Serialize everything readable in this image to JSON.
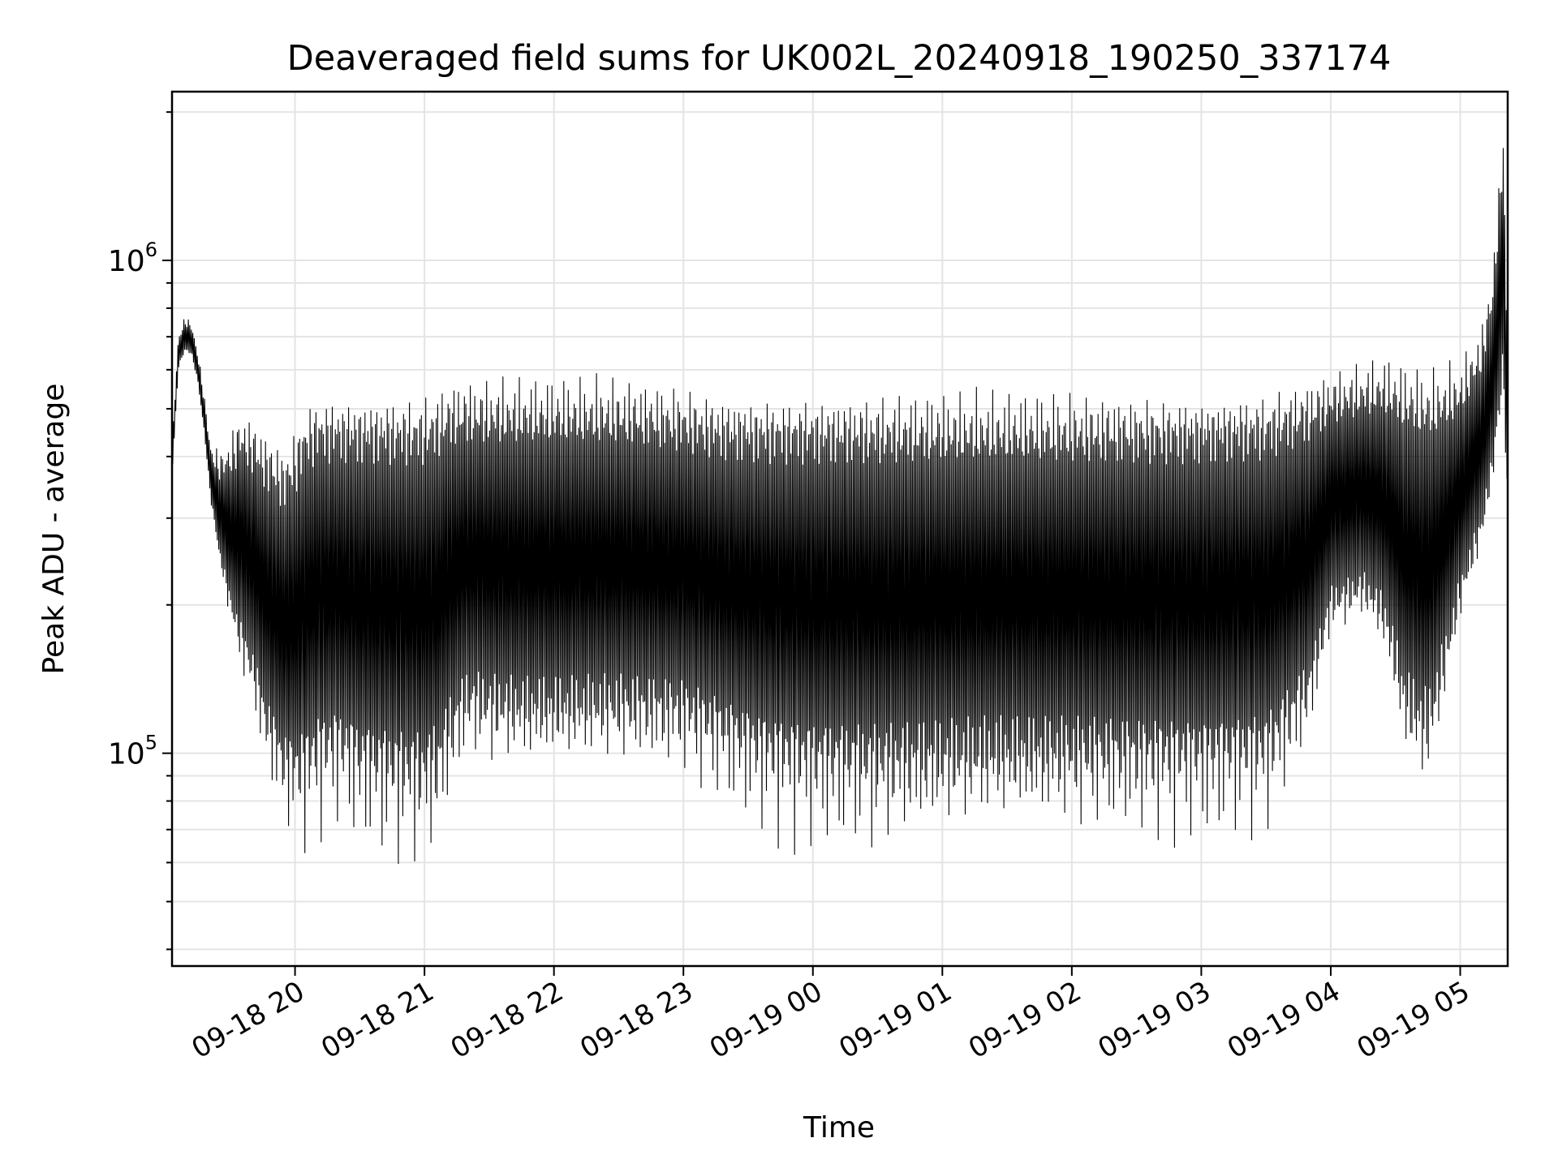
{
  "chart_data": {
    "type": "line",
    "title": "Deaveraged field sums for UK002L_20240918_190250_337174",
    "xlabel": "Time",
    "ylabel": "Peak ADU - average",
    "x_scale": "time",
    "y_scale": "log",
    "xlim": [
      "2024-09-18 19:03",
      "2024-09-19 05:22"
    ],
    "ylim": [
      37000,
      2200000
    ],
    "grid": true,
    "line_color": "#000000",
    "x_ticks": [
      {
        "value": "2024-09-18 20:00",
        "label": "09-18 20"
      },
      {
        "value": "2024-09-18 21:00",
        "label": "09-18 21"
      },
      {
        "value": "2024-09-18 22:00",
        "label": "09-18 22"
      },
      {
        "value": "2024-09-18 23:00",
        "label": "09-18 23"
      },
      {
        "value": "2024-09-19 00:00",
        "label": "09-19 00"
      },
      {
        "value": "2024-09-19 01:00",
        "label": "09-19 01"
      },
      {
        "value": "2024-09-19 02:00",
        "label": "09-19 02"
      },
      {
        "value": "2024-09-19 03:00",
        "label": "09-19 03"
      },
      {
        "value": "2024-09-19 04:00",
        "label": "09-19 04"
      },
      {
        "value": "2024-09-19 05:00",
        "label": "09-19 05"
      }
    ],
    "y_ticks": [
      {
        "value": 100000,
        "base": "10",
        "exp": "5"
      },
      {
        "value": 1000000,
        "base": "10",
        "exp": "6"
      }
    ],
    "series": [
      {
        "x": [
          "2024-09-18 19:03",
          "2024-09-18 19:06",
          "2024-09-18 19:09",
          "2024-09-18 19:12",
          "2024-09-18 19:15",
          "2024-09-18 19:18",
          "2024-09-18 19:21",
          "2024-09-18 19:25",
          "2024-09-18 19:30",
          "2024-09-18 19:35",
          "2024-09-18 19:40",
          "2024-09-18 19:45",
          "2024-09-18 19:50",
          "2024-09-18 19:55",
          "2024-09-18 20:00",
          "2024-09-18 20:05",
          "2024-09-18 20:10",
          "2024-09-18 20:20",
          "2024-09-18 20:30",
          "2024-09-18 20:40",
          "2024-09-18 20:50",
          "2024-09-18 21:00",
          "2024-09-18 21:07",
          "2024-09-18 21:12",
          "2024-09-18 21:20",
          "2024-09-18 21:30",
          "2024-09-18 21:45",
          "2024-09-18 22:00",
          "2024-09-18 22:30",
          "2024-09-18 23:00",
          "2024-09-18 23:20",
          "2024-09-18 23:40",
          "2024-09-19 00:00",
          "2024-09-19 00:30",
          "2024-09-19 01:00",
          "2024-09-19 01:30",
          "2024-09-19 02:00",
          "2024-09-19 02:30",
          "2024-09-19 03:00",
          "2024-09-19 03:30",
          "2024-09-19 03:50",
          "2024-09-19 04:00",
          "2024-09-19 04:15",
          "2024-09-19 04:25",
          "2024-09-19 04:35",
          "2024-09-19 04:45",
          "2024-09-19 05:00",
          "2024-09-19 05:10",
          "2024-09-19 05:15",
          "2024-09-19 05:20",
          "2024-09-19 05:22"
        ],
        "y_low": [
          360000,
          600000,
          650000,
          640000,
          560000,
          440000,
          320000,
          240000,
          180000,
          140000,
          120000,
          92000,
          76000,
          66000,
          60000,
          57000,
          62000,
          66000,
          58000,
          55000,
          53000,
          52000,
          56000,
          70000,
          88000,
          84000,
          82000,
          82000,
          84000,
          83000,
          72000,
          62000,
          58000,
          56000,
          58000,
          60000,
          60000,
          60000,
          60000,
          62000,
          96000,
          165000,
          180000,
          150000,
          82000,
          70000,
          175000,
          250000,
          330000,
          500000,
          280000
        ],
        "y_high": [
          440000,
          720000,
          780000,
          760000,
          660000,
          540000,
          430000,
          420000,
          460000,
          520000,
          500000,
          480000,
          460000,
          440000,
          480000,
          540000,
          560000,
          560000,
          560000,
          560000,
          560000,
          560000,
          580000,
          600000,
          600000,
          600000,
          600000,
          600000,
          600000,
          580000,
          560000,
          560000,
          560000,
          560000,
          560000,
          560000,
          560000,
          560000,
          560000,
          570000,
          600000,
          620000,
          640000,
          660000,
          640000,
          620000,
          640000,
          760000,
          1000000,
          2000000,
          620000
        ]
      }
    ]
  }
}
